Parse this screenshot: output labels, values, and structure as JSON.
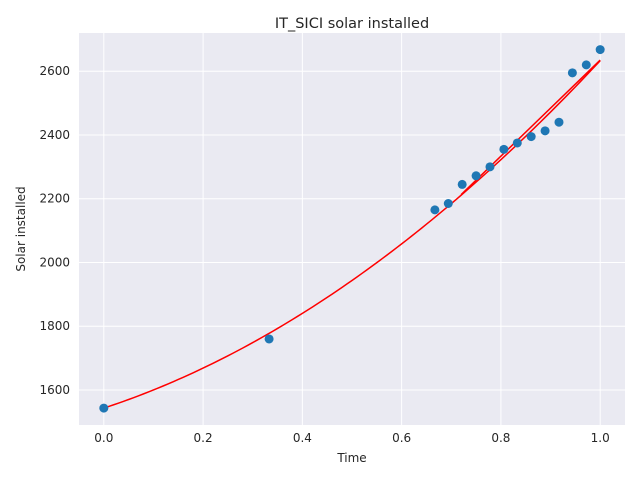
{
  "chart_data": {
    "type": "scatter",
    "title": "IT_SICI solar installed",
    "xlabel": "Time",
    "ylabel": "Solar installed",
    "xlim": [
      -0.05,
      1.05
    ],
    "ylim": [
      1490,
      2720
    ],
    "x_ticks": [
      0.0,
      0.2,
      0.4,
      0.6,
      0.8,
      1.0
    ],
    "x_tick_labels": [
      "0.0",
      "0.2",
      "0.4",
      "0.6",
      "0.8",
      "1.0"
    ],
    "y_ticks": [
      1600,
      1800,
      2000,
      2200,
      2400,
      2600
    ],
    "y_tick_labels": [
      "1600",
      "1800",
      "2000",
      "2200",
      "2400",
      "2600"
    ],
    "grid": true,
    "colors": {
      "background": "#eaeaf2",
      "points": "#1f77b4",
      "fit_line": "#ff0000"
    },
    "series": [
      {
        "name": "observed",
        "kind": "scatter",
        "x": [
          0.0,
          0.333,
          0.667,
          0.694,
          0.722,
          0.75,
          0.778,
          0.806,
          0.833,
          0.861,
          0.889,
          0.917,
          0.944,
          0.972,
          1.0
        ],
        "y": [
          1543,
          1760,
          2165,
          2185,
          2245,
          2272,
          2300,
          2355,
          2375,
          2395,
          2413,
          2440,
          2595,
          2620,
          2668
        ]
      },
      {
        "name": "fit-quadratic",
        "kind": "line",
        "coeffs": [
          1543,
          512,
          578
        ],
        "x_range": [
          0.0,
          1.0
        ]
      },
      {
        "name": "fit-linear-segment",
        "kind": "line",
        "x": [
          0.72,
          1.0
        ],
        "y": [
          2213,
          2635
        ]
      }
    ]
  }
}
